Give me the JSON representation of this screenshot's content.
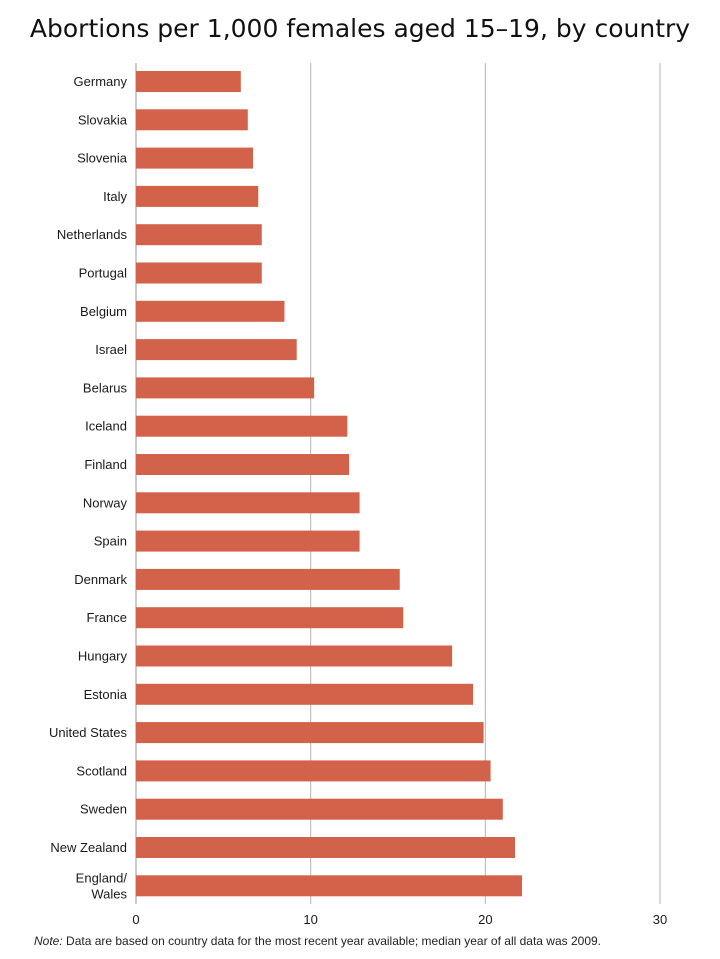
{
  "chart_data": {
    "type": "bar",
    "orientation": "horizontal",
    "title": "Abortions per 1,000 females aged 15–19, by country",
    "categories": [
      "Germany",
      "Slovakia",
      "Slovenia",
      "Italy",
      "Netherlands",
      "Portugal",
      "Belgium",
      "Israel",
      "Belarus",
      "Iceland",
      "Finland",
      "Norway",
      "Spain",
      "Denmark",
      "France",
      "Hungary",
      "Estonia",
      "United States",
      "Scotland",
      "Sweden",
      "New Zealand",
      "England/\nWales"
    ],
    "values": [
      6.0,
      6.4,
      6.7,
      7.0,
      7.2,
      7.2,
      8.5,
      9.2,
      10.2,
      12.1,
      12.2,
      12.8,
      12.8,
      15.1,
      15.3,
      18.1,
      19.3,
      19.9,
      20.3,
      21.0,
      21.7,
      22.1
    ],
    "xlabel": "",
    "ylabel": "",
    "xlim": [
      0,
      30
    ],
    "xticks": [
      0,
      10,
      20,
      30
    ],
    "grid": true,
    "bar_color": "#d2624a",
    "grid_color": "#b5b5b5",
    "note_label": "Note:",
    "note_text": " Data are based on country data for the most recent year available; median year of all data was 2009."
  }
}
